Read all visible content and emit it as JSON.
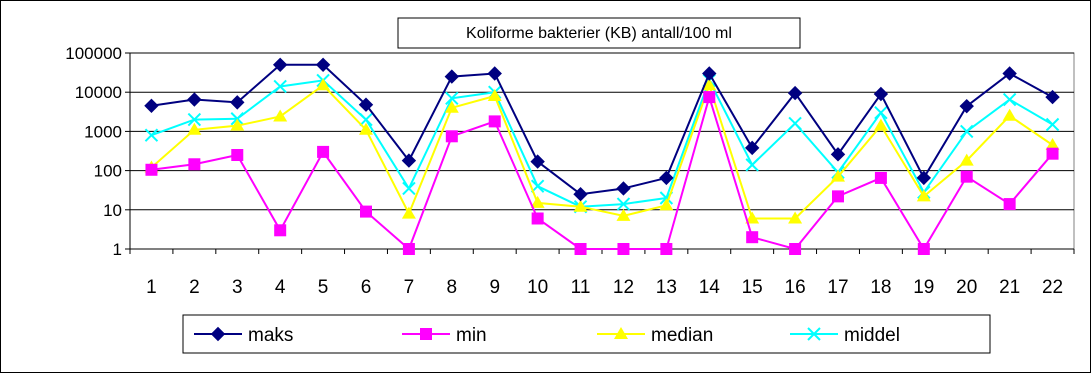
{
  "chart_data": {
    "type": "line",
    "title": "Koliforme bakterier (KB)  antall/100 ml",
    "xlabel": "",
    "ylabel": "",
    "y_scale": "log",
    "ylim": [
      1,
      100000
    ],
    "y_ticks": [
      "100000",
      "10000",
      "1000",
      "100",
      "10",
      "1"
    ],
    "grid": "horizontal",
    "legend_position": "bottom",
    "categories": [
      "1",
      "2",
      "3",
      "4",
      "5",
      "6",
      "7",
      "8",
      "9",
      "10",
      "11",
      "12",
      "13",
      "14",
      "15",
      "16",
      "17",
      "18",
      "19",
      "20",
      "21",
      "22"
    ],
    "series": [
      {
        "name": "maks",
        "color": "#000080",
        "marker": "diamond",
        "values": [
          4500,
          6500,
          5500,
          50000,
          50000,
          4800,
          180,
          25000,
          30000,
          170,
          25,
          35,
          65,
          30000,
          380,
          9500,
          260,
          9000,
          65,
          4400,
          30000,
          7500
        ]
      },
      {
        "name": "min",
        "color": "#ff00ff",
        "marker": "square",
        "values": [
          105,
          145,
          250,
          3,
          300,
          9,
          1,
          750,
          1800,
          6,
          1,
          1,
          1,
          7500,
          2,
          1,
          22,
          65,
          1,
          70,
          14,
          270
        ]
      },
      {
        "name": "median",
        "color": "#ffff00",
        "marker": "triangle",
        "values": [
          120,
          1100,
          1400,
          2400,
          15000,
          1100,
          8,
          4000,
          8000,
          15,
          12,
          7,
          13,
          15000,
          6,
          6,
          70,
          1400,
          22,
          180,
          2500,
          450
        ]
      },
      {
        "name": "middel",
        "color": "#00ffff",
        "marker": "x",
        "values": [
          800,
          2000,
          2100,
          14000,
          20000,
          2000,
          35,
          7000,
          10000,
          40,
          12,
          14,
          20,
          20000,
          140,
          1600,
          90,
          3000,
          28,
          1000,
          6500,
          1500
        ]
      }
    ]
  }
}
